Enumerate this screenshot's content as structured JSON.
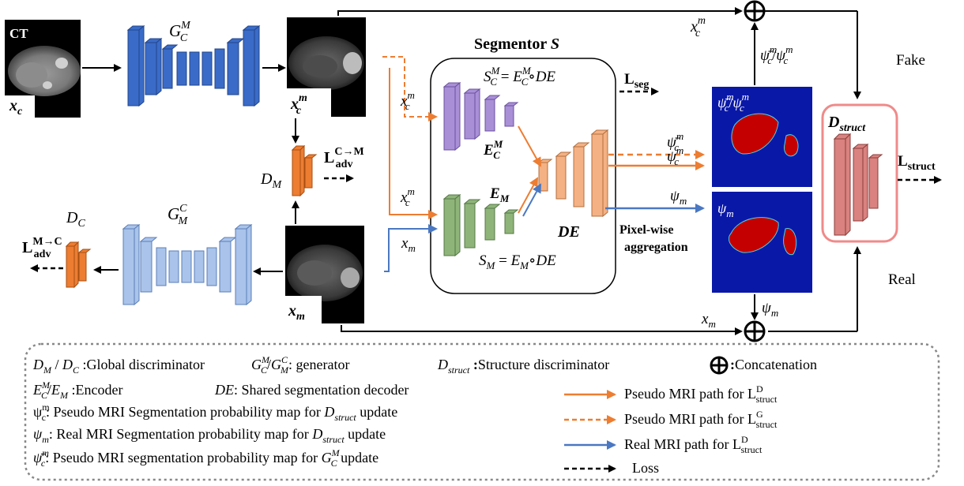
{
  "images": {
    "ct_label": "CT",
    "xc_label": "x_c",
    "xcm_label": "x_c^m",
    "xm_label": "x_m"
  },
  "generators": {
    "gc_m": "G_C^M",
    "gm_c": "G_M^C"
  },
  "discriminators": {
    "dm": "D_M",
    "dc": "D_C",
    "dstruct": "D_struct"
  },
  "losses": {
    "adv_cm": "L_adv^{C→M}",
    "adv_mc": "L_adv^{M→C}",
    "seg": "L_seg",
    "struct": "L_struct"
  },
  "segmentor": {
    "title": "Segmentor S",
    "top_eq": "S_C^M = E_C^M ∘ DE",
    "bottom_eq": "S_M = E_M ∘ DE",
    "enc_cm": "E_C^M",
    "enc_m": "E_M",
    "decoder": "DE"
  },
  "path_labels": {
    "xcm_top": "x_c^m",
    "xcm_seg_top": "x_c^m",
    "xcm_seg_mid": "x_c^m",
    "xm_seg": "x_m",
    "psibar_cm": "ψ̄_c^m",
    "psi_cm": "ψ_c^m",
    "psi_m": "ψ_m",
    "concat_top": "ψ̄_c^m / ψ_c^m",
    "psi_m_down": "ψ_m",
    "xm_bottom": "x_m",
    "pixelwise": "Pixel-wise",
    "aggregation": "aggregation",
    "fake": "Fake",
    "real": "Real",
    "map_top": "ψ̄_c^m / ψ_c^m",
    "map_bottom": "ψ_m"
  },
  "legend": {
    "row1_a": "D_M / D_C :Global discriminator",
    "row1_b": "G_C^M / G_M^C: generator",
    "row1_c": "D_struct :Structure discriminator",
    "row1_d": ":Concatenation",
    "row2_a": "E_C^M / E_M :Encoder",
    "row2_b": "DE: Shared segmentation decoder",
    "row3": "ψ_c^m: Pseudo MRI Segmentation probability map for D_struct update",
    "row4": "ψ_m: Real MRI Segmentation probability map for D_struct update",
    "row5": "ψ̄_c^m: Pseudo MRI segmentation probability map for G_C^M update",
    "key_orange_solid": "Pseudo MRI path for L_struct^D",
    "key_orange_dash": "Pseudo MRI path for L_struct^G",
    "key_blue": "Real MRI path for L_struct^D",
    "key_loss": "Loss"
  },
  "colors": {
    "blue_dark": "#3a6bc8",
    "blue_light": "#a9c3ea",
    "orange": "#ed7d31",
    "orange_light": "#f4b183",
    "purple": "#a98fd6",
    "green": "#8fb47a",
    "red_box": "#f08a8a",
    "dstruct_fill": "#d9827f",
    "map_bg": "#0a18a8",
    "map_organ": "#c40000",
    "path_orange": "#ed7d31",
    "path_blue": "#4a78c2"
  }
}
